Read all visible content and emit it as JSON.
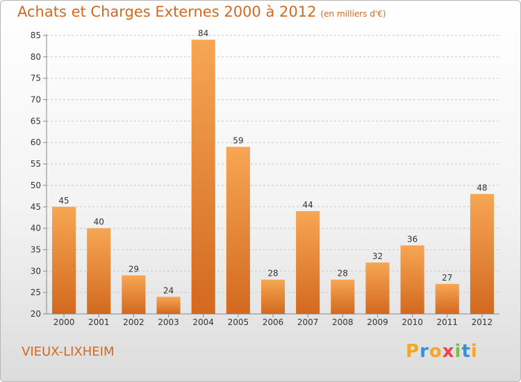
{
  "chart_data": {
    "type": "bar",
    "title": "Achats et Charges Externes 2000 à 2012",
    "subtitle": "(en milliers d'€)",
    "categories": [
      "2000",
      "2001",
      "2002",
      "2003",
      "2004",
      "2005",
      "2006",
      "2007",
      "2008",
      "2009",
      "2010",
      "2011",
      "2012"
    ],
    "values": [
      45,
      40,
      29,
      24,
      84,
      59,
      28,
      44,
      28,
      32,
      36,
      27,
      48
    ],
    "ylim": [
      20,
      85
    ],
    "yticks": [
      20,
      25,
      30,
      35,
      40,
      45,
      50,
      55,
      60,
      65,
      70,
      75,
      80,
      85
    ],
    "grid": true,
    "bar_color_top": "#f7a654",
    "bar_color_bottom": "#d2691e",
    "text_color": "#d2691e"
  },
  "place": "VIEUX-LIXHEIM",
  "logo": {
    "letters": [
      "P",
      "r",
      "o",
      "x",
      "i",
      "t",
      "i"
    ],
    "colors": [
      "#f5a623",
      "#3b8fd8",
      "#f5a623",
      "#e8434f",
      "#7cc242",
      "#3b8fd8",
      "#f5a623"
    ]
  }
}
